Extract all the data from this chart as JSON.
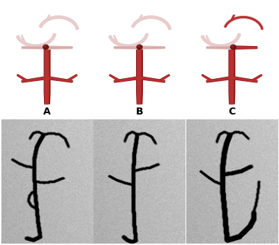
{
  "figure_width": 4.0,
  "figure_height": 3.51,
  "dpi": 100,
  "bg_color": "#ffffff",
  "labels": [
    "A",
    "B",
    "C"
  ],
  "label_fontsize": 10,
  "label_fontweight": "bold",
  "vessel_bright": "#b83030",
  "vessel_mid": "#c94040",
  "vessel_dark": "#8b1a1a",
  "vessel_pale_pink": "#dba8a8",
  "vessel_very_pale": "#e8cccc",
  "occlusion_dark": "#6b1515",
  "angio_bg_light": 0.78,
  "angio_bg_dark": 0.45
}
